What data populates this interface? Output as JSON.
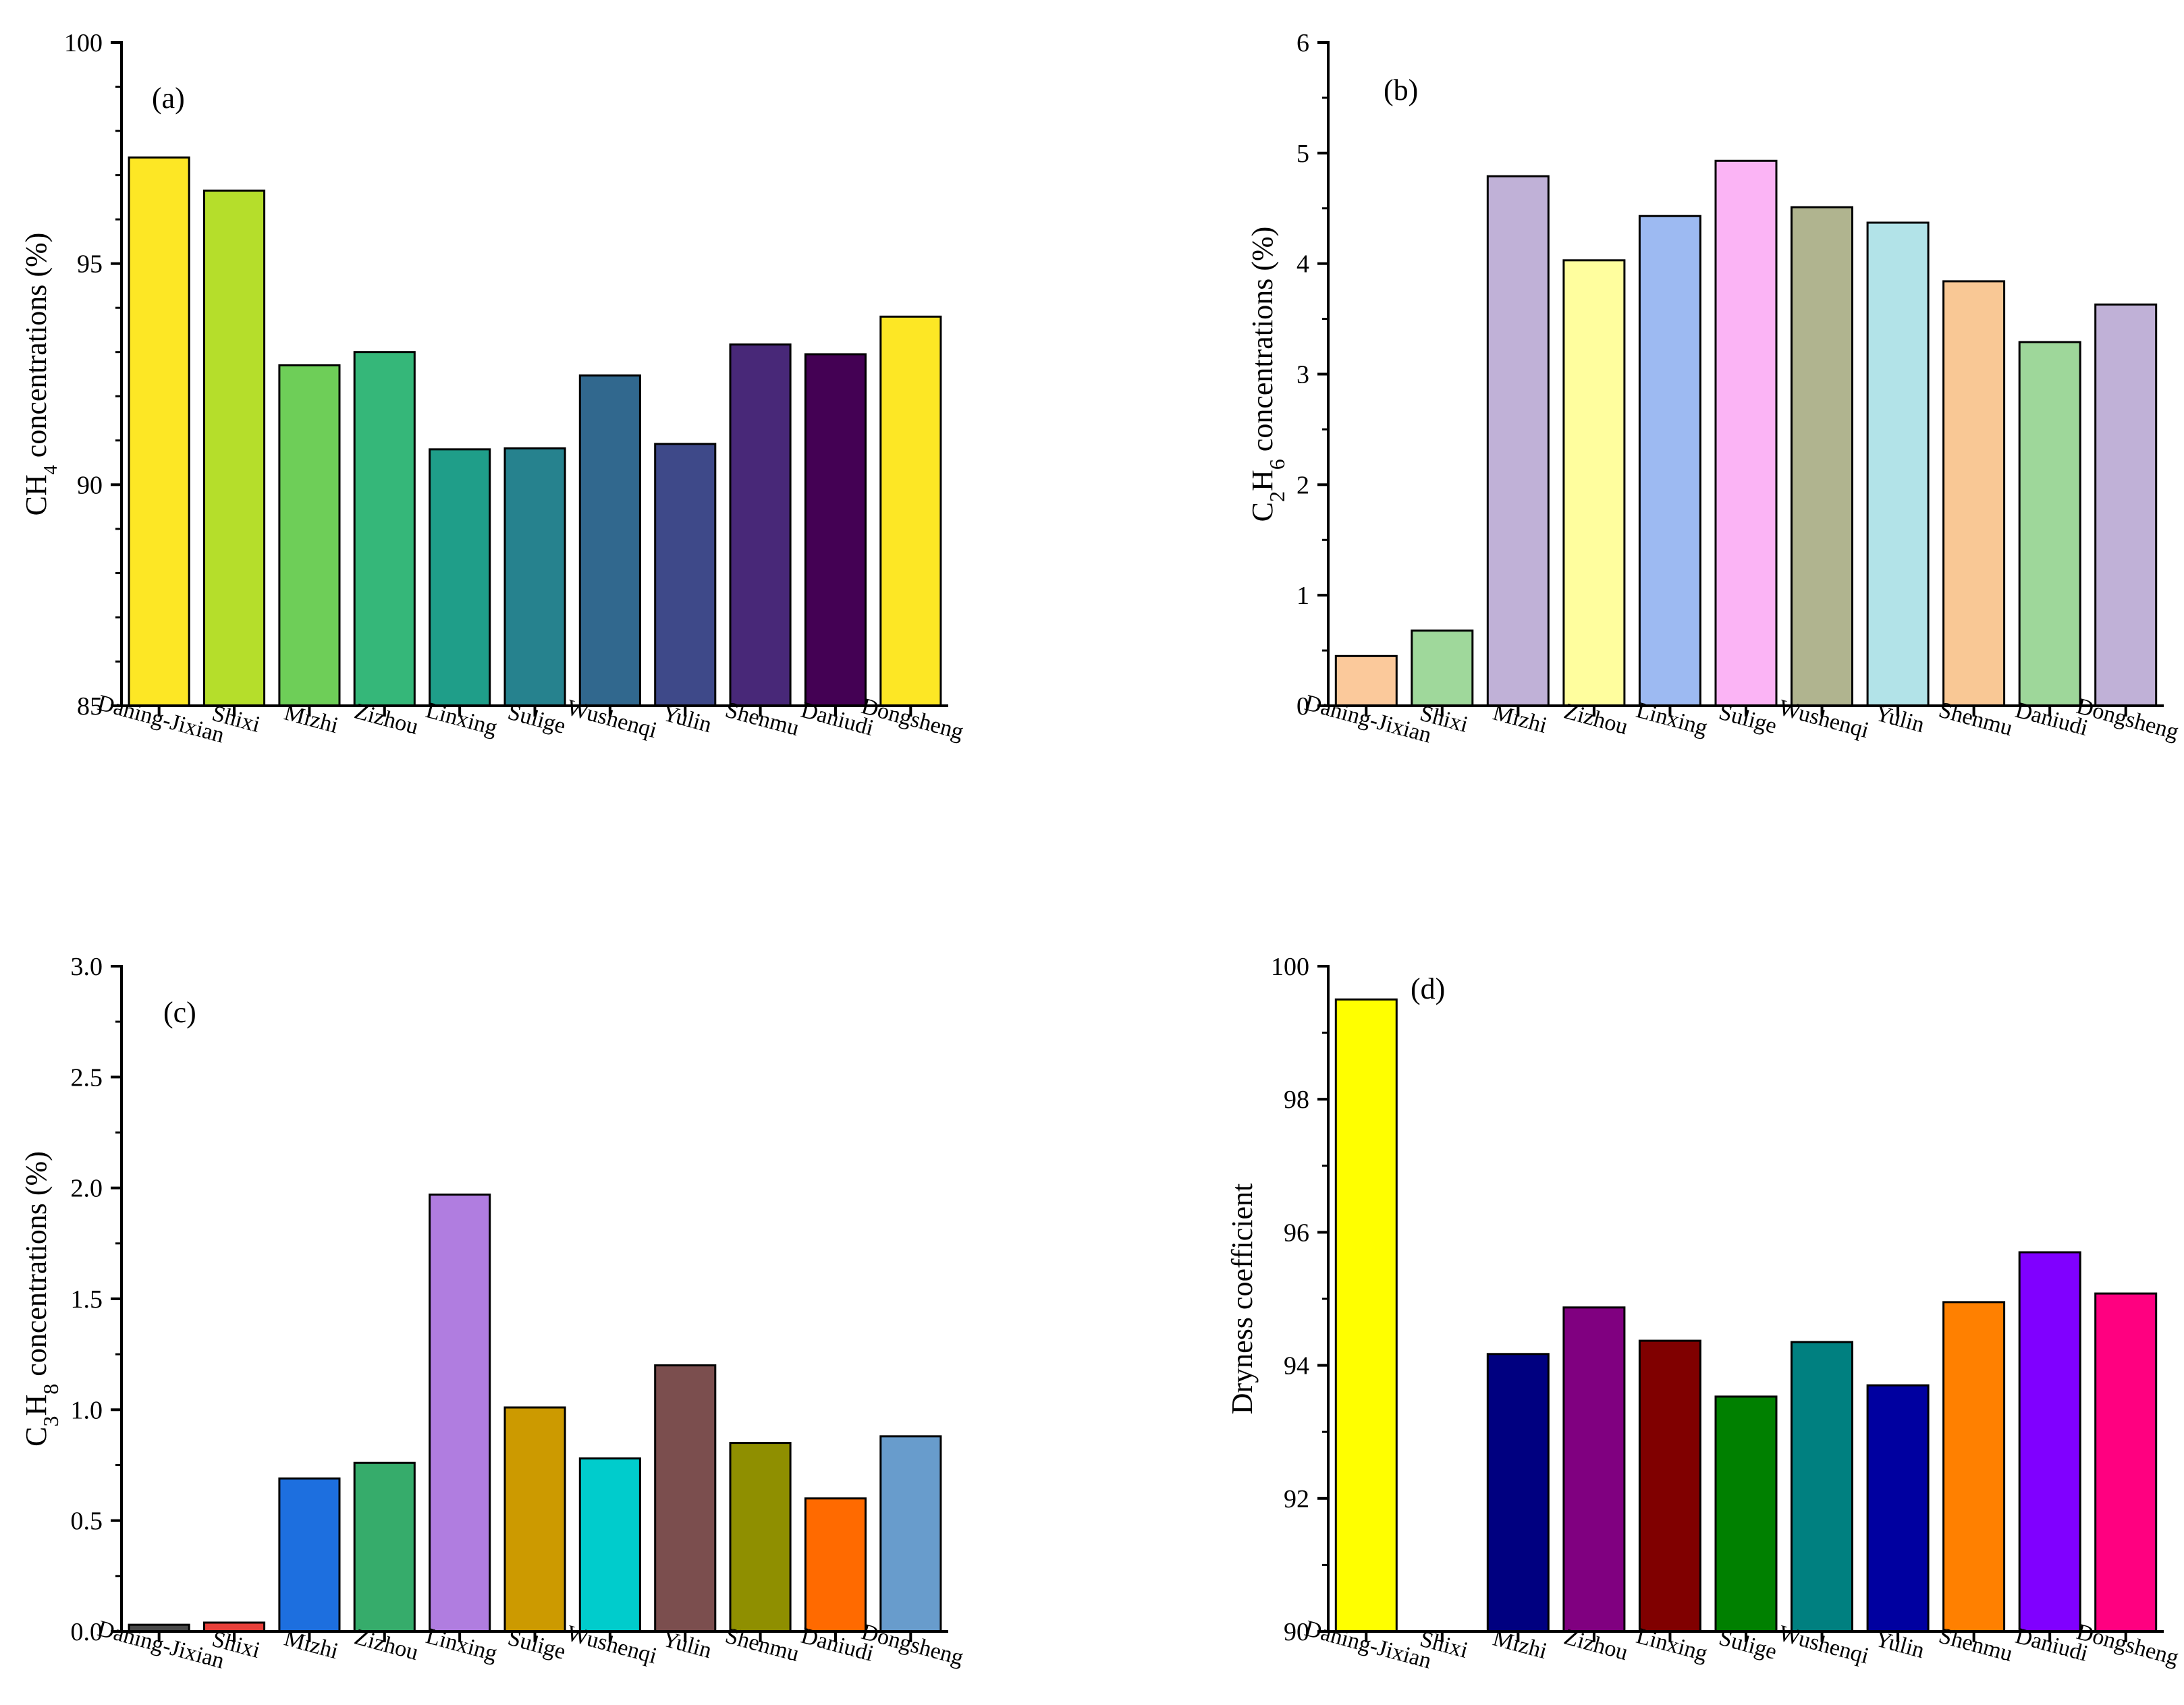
{
  "chart_data": [
    {
      "type": "bar",
      "panel_label": "(a)",
      "ylabel_main": "CH",
      "ylabel_sub": "4",
      "ylabel_rest": " concentrations (%)",
      "ylabel_sub_style": "inline",
      "ylim": [
        85,
        100
      ],
      "yticks": [
        85,
        90,
        95,
        100
      ],
      "ytick_labels": [
        "85",
        "90",
        "95",
        "100"
      ],
      "categories": [
        "Daning-Jixian",
        "Shixi",
        "Mizhi",
        "Zizhou",
        "Linxing",
        "Sulige",
        "Wushenqi",
        "Yulin",
        "Shenmu",
        "Daniudi",
        "Dongsheng"
      ],
      "values": [
        97.4,
        96.65,
        92.7,
        93.0,
        90.8,
        90.82,
        92.47,
        90.92,
        93.17,
        92.95,
        93.8
      ],
      "colors": [
        "#fde725",
        "#b5de2b",
        "#6ece58",
        "#35b779",
        "#1f9e89",
        "#26828e",
        "#31688e",
        "#3e4989",
        "#482878",
        "#440154",
        "#fde725"
      ]
    },
    {
      "type": "bar",
      "panel_label": "(b)",
      "ylabel_main": "C",
      "ylabel_sub": "2",
      "ylabel_mid": "H",
      "ylabel_sub2": "6",
      "ylabel_rest": " concentrations (%)",
      "ylim": [
        0,
        6
      ],
      "yticks": [
        0,
        1,
        2,
        3,
        4,
        5,
        6
      ],
      "ytick_labels": [
        "0",
        "1",
        "2",
        "3",
        "4",
        "5",
        "6"
      ],
      "categories": [
        "Daning-Jixian",
        "Shixi",
        "Mizhi",
        "Zizhou",
        "Linxing",
        "Sulige",
        "Wushenqi",
        "Yulin",
        "Shenmu",
        "Daniudi",
        "Dongsheng"
      ],
      "values": [
        0.45,
        0.68,
        4.79,
        4.03,
        4.43,
        4.93,
        4.51,
        4.37,
        3.84,
        3.29,
        3.63
      ],
      "colors": [
        "#fbc99b",
        "#9fd89b",
        "#c0b1d7",
        "#fffe9e",
        "#9dbaf2",
        "#fbb4f5",
        "#b0b48f",
        "#b2e3e8",
        "#f9c895",
        "#9ed79a",
        "#c0b1d7"
      ]
    },
    {
      "type": "bar",
      "panel_label": "(c)",
      "ylabel_main": "C",
      "ylabel_sub": "3",
      "ylabel_mid": "H",
      "ylabel_sub2": "8",
      "ylabel_rest": " concentrations (%)",
      "ylim": [
        0,
        3
      ],
      "yticks": [
        0,
        0.5,
        1,
        1.5,
        2,
        2.5,
        3
      ],
      "ytick_labels": [
        "0.0",
        "0.5",
        "1.0",
        "1.5",
        "2.0",
        "2.5",
        "3.0"
      ],
      "categories": [
        "Daning-Jixian",
        "Shixi",
        "Mizhi",
        "Zizhou",
        "Linxing",
        "Sulige",
        "Wushenqi",
        "Yulin",
        "Shenmu",
        "Daniudi",
        "Dongsheng"
      ],
      "values": [
        0.03,
        0.04,
        0.69,
        0.76,
        1.97,
        1.01,
        0.78,
        1.2,
        0.85,
        0.6,
        0.88
      ],
      "colors": [
        "#4a4a4a",
        "#e8403a",
        "#1d6fdf",
        "#36ac6b",
        "#b07de0",
        "#cc9a00",
        "#00cccc",
        "#7b4e4e",
        "#8f8f00",
        "#ff6a00",
        "#689ccc"
      ]
    },
    {
      "type": "bar",
      "panel_label": "(d)",
      "ylabel_main": "Dryness coefficient",
      "ylim": [
        90,
        100
      ],
      "yticks": [
        90,
        92,
        94,
        96,
        98,
        100
      ],
      "ytick_labels": [
        "90",
        "92",
        "94",
        "96",
        "98",
        "100"
      ],
      "categories": [
        "Daning-Jixian",
        "Shixi",
        "Mizhi",
        "Zizhou",
        "Linxing",
        "Sulige",
        "Wushenqi",
        "Yulin",
        "Shenmu",
        "Daniudi",
        "Dongsheng"
      ],
      "values": [
        99.5,
        null,
        94.17,
        94.87,
        94.37,
        93.53,
        94.35,
        93.7,
        94.95,
        95.7,
        95.08
      ],
      "colors": [
        "#ffff00",
        "#ffffff",
        "#000080",
        "#800080",
        "#800000",
        "#008000",
        "#008080",
        "#0000a0",
        "#ff8000",
        "#8000ff",
        "#ff0080"
      ]
    }
  ]
}
